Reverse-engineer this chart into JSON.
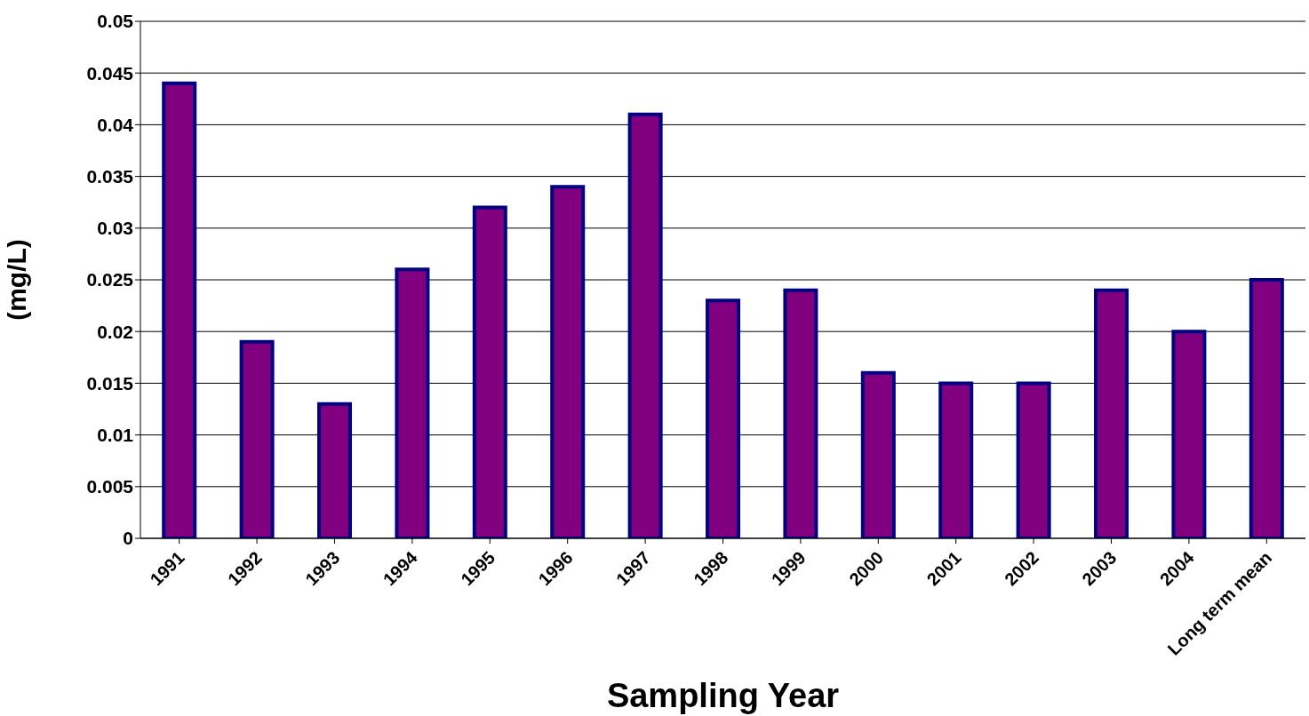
{
  "chart_data": {
    "type": "bar",
    "xlabel": "Sampling Year",
    "ylabel": "(mg/L)",
    "categories": [
      "1991",
      "1992",
      "1993",
      "1994",
      "1995",
      "1996",
      "1997",
      "1998",
      "1999",
      "2000",
      "2001",
      "2002",
      "2003",
      "2004",
      "Long term mean"
    ],
    "values": [
      0.044,
      0.019,
      0.013,
      0.026,
      0.032,
      0.034,
      0.041,
      0.023,
      0.024,
      0.016,
      0.015,
      0.015,
      0.024,
      0.02,
      0.025
    ],
    "color": "#800080",
    "ylim": [
      0,
      0.05
    ],
    "yticks": [
      0,
      0.005,
      0.01,
      0.015,
      0.02,
      0.025,
      0.03,
      0.035,
      0.04,
      0.045,
      0.05
    ],
    "grid": "y",
    "legend": false
  }
}
